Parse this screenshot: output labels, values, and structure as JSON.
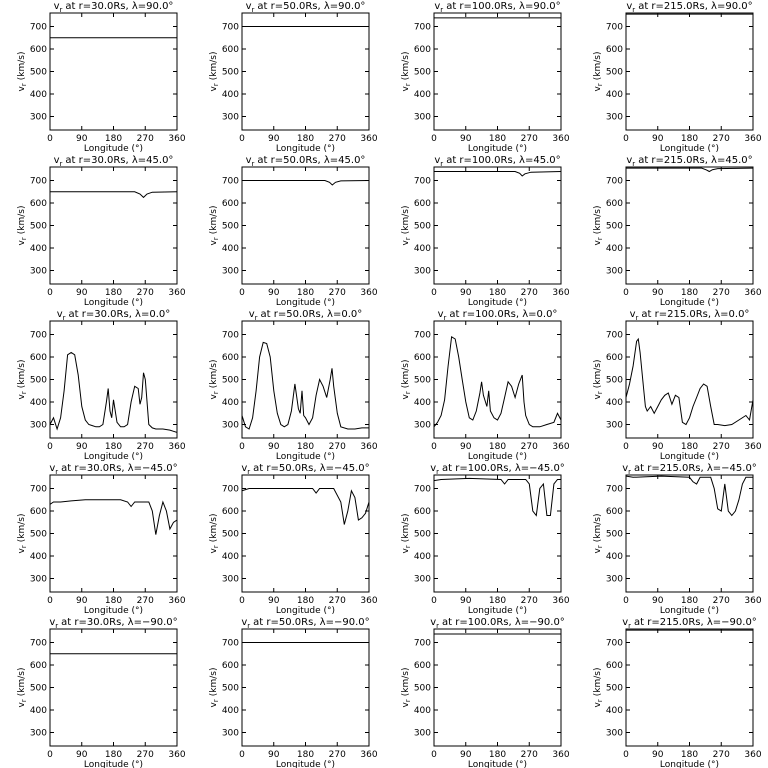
{
  "chart_data": [
    {
      "type": "line",
      "title_symbol": "v",
      "title_subscript": "r",
      "title": "at r=30.0Rs, λ=90.0°",
      "y_label_symbol": "v",
      "y_label_subscript": "r",
      "y_label": "(km/s)",
      "x_label": "Longitude (°)",
      "color": "#000000",
      "xlim": [
        0,
        360
      ],
      "ylim": [
        240,
        760
      ],
      "xticks": [
        0,
        90,
        180,
        270,
        360
      ],
      "yticks": [
        300,
        400,
        500,
        600,
        700
      ],
      "x": [
        0,
        360
      ],
      "values": [
        650,
        650
      ]
    },
    {
      "type": "line",
      "title_symbol": "v",
      "title_subscript": "r",
      "title": "at r=50.0Rs, λ=90.0°",
      "y_label_symbol": "v",
      "y_label_subscript": "r",
      "y_label": "(km/s)",
      "x_label": "Longitude (°)",
      "color": "#000000",
      "xlim": [
        0,
        360
      ],
      "ylim": [
        240,
        760
      ],
      "xticks": [
        0,
        90,
        180,
        270,
        360
      ],
      "yticks": [
        300,
        400,
        500,
        600,
        700
      ],
      "x": [
        0,
        360
      ],
      "values": [
        700,
        700
      ]
    },
    {
      "type": "line",
      "title_symbol": "v",
      "title_subscript": "r",
      "title": "at r=100.0Rs, λ=90.0°",
      "y_label_symbol": "v",
      "y_label_subscript": "r",
      "y_label": "(km/s)",
      "x_label": "Longitude (°)",
      "color": "#000000",
      "xlim": [
        0,
        360
      ],
      "ylim": [
        240,
        760
      ],
      "xticks": [
        0,
        90,
        180,
        270,
        360
      ],
      "yticks": [
        300,
        400,
        500,
        600,
        700
      ],
      "x": [
        0,
        360
      ],
      "values": [
        738,
        738
      ]
    },
    {
      "type": "line",
      "title_symbol": "v",
      "title_subscript": "r",
      "title": "at r=215.0Rs, λ=90.0°",
      "y_label_symbol": "v",
      "y_label_subscript": "r",
      "y_label": "(km/s)",
      "x_label": "Longitude (°)",
      "color": "#000000",
      "xlim": [
        0,
        360
      ],
      "ylim": [
        240,
        760
      ],
      "xticks": [
        0,
        90,
        180,
        270,
        360
      ],
      "yticks": [
        300,
        400,
        500,
        600,
        700
      ],
      "x": [
        0,
        360
      ],
      "values": [
        755,
        755
      ]
    },
    {
      "type": "line",
      "title_symbol": "v",
      "title_subscript": "r",
      "title": "at r=30.0Rs, λ=45.0°",
      "y_label_symbol": "v",
      "y_label_subscript": "r",
      "y_label": "(km/s)",
      "x_label": "Longitude (°)",
      "color": "#000000",
      "xlim": [
        0,
        360
      ],
      "ylim": [
        240,
        760
      ],
      "xticks": [
        0,
        90,
        180,
        270,
        360
      ],
      "yticks": [
        300,
        400,
        500,
        600,
        700
      ],
      "x": [
        0,
        240,
        255,
        265,
        275,
        290,
        360
      ],
      "values": [
        650,
        650,
        640,
        625,
        640,
        648,
        650
      ]
    },
    {
      "type": "line",
      "title_symbol": "v",
      "title_subscript": "r",
      "title": "at r=50.0Rs, λ=45.0°",
      "y_label_symbol": "v",
      "y_label_subscript": "r",
      "y_label": "(km/s)",
      "x_label": "Longitude (°)",
      "color": "#000000",
      "xlim": [
        0,
        360
      ],
      "ylim": [
        240,
        760
      ],
      "xticks": [
        0,
        90,
        180,
        270,
        360
      ],
      "yticks": [
        300,
        400,
        500,
        600,
        700
      ],
      "x": [
        0,
        235,
        248,
        256,
        265,
        280,
        360
      ],
      "values": [
        700,
        700,
        692,
        680,
        692,
        698,
        700
      ]
    },
    {
      "type": "line",
      "title_symbol": "v",
      "title_subscript": "r",
      "title": "at r=100.0Rs, λ=45.0°",
      "y_label_symbol": "v",
      "y_label_subscript": "r",
      "y_label": "(km/s)",
      "x_label": "Longitude (°)",
      "color": "#000000",
      "xlim": [
        0,
        360
      ],
      "ylim": [
        240,
        760
      ],
      "xticks": [
        0,
        90,
        180,
        270,
        360
      ],
      "yticks": [
        300,
        400,
        500,
        600,
        700
      ],
      "x": [
        0,
        230,
        243,
        250,
        258,
        275,
        360
      ],
      "values": [
        740,
        740,
        732,
        720,
        730,
        737,
        740
      ]
    },
    {
      "type": "line",
      "title_symbol": "v",
      "title_subscript": "r",
      "title": "at r=215.0Rs, λ=45.0°",
      "y_label_symbol": "v",
      "y_label_subscript": "r",
      "y_label": "(km/s)",
      "x_label": "Longitude (°)",
      "color": "#000000",
      "xlim": [
        0,
        360
      ],
      "ylim": [
        240,
        760
      ],
      "xticks": [
        0,
        90,
        180,
        270,
        360
      ],
      "yticks": [
        300,
        400,
        500,
        600,
        700
      ],
      "x": [
        0,
        215,
        228,
        236,
        245,
        260,
        360
      ],
      "values": [
        755,
        755,
        747,
        740,
        748,
        753,
        755
      ]
    },
    {
      "type": "line",
      "title_symbol": "v",
      "title_subscript": "r",
      "title": "at r=30.0Rs, λ=0.0°",
      "y_label_symbol": "v",
      "y_label_subscript": "r",
      "y_label": "(km/s)",
      "x_label": "Longitude (°)",
      "color": "#000000",
      "xlim": [
        0,
        360
      ],
      "ylim": [
        240,
        760
      ],
      "xticks": [
        0,
        90,
        180,
        270,
        360
      ],
      "yticks": [
        300,
        400,
        500,
        600,
        700
      ],
      "x": [
        0,
        10,
        20,
        30,
        40,
        50,
        60,
        70,
        80,
        90,
        100,
        110,
        120,
        130,
        140,
        150,
        160,
        165,
        170,
        175,
        180,
        190,
        200,
        210,
        220,
        230,
        240,
        250,
        255,
        260,
        265,
        270,
        280,
        290,
        300,
        320,
        340,
        350,
        360
      ],
      "values": [
        300,
        330,
        280,
        330,
        450,
        610,
        620,
        610,
        520,
        380,
        320,
        300,
        295,
        290,
        290,
        300,
        400,
        460,
        360,
        330,
        410,
        310,
        290,
        290,
        300,
        400,
        470,
        460,
        390,
        420,
        530,
        500,
        300,
        285,
        280,
        280,
        275,
        270,
        265
      ]
    },
    {
      "type": "line",
      "title_symbol": "v",
      "title_subscript": "r",
      "title": "at r=50.0Rs, λ=0.0°",
      "y_label_symbol": "v",
      "y_label_subscript": "r",
      "y_label": "(km/s)",
      "x_label": "Longitude (°)",
      "color": "#000000",
      "xlim": [
        0,
        360
      ],
      "ylim": [
        240,
        760
      ],
      "xticks": [
        0,
        90,
        180,
        270,
        360
      ],
      "yticks": [
        300,
        400,
        500,
        600,
        700
      ],
      "x": [
        0,
        10,
        20,
        30,
        40,
        50,
        60,
        70,
        80,
        90,
        100,
        110,
        120,
        130,
        140,
        150,
        160,
        165,
        170,
        175,
        180,
        190,
        200,
        210,
        220,
        230,
        240,
        250,
        255,
        260,
        270,
        280,
        300,
        320,
        340,
        360
      ],
      "values": [
        340,
        290,
        280,
        330,
        450,
        600,
        665,
        660,
        600,
        450,
        350,
        300,
        290,
        300,
        360,
        480,
        370,
        350,
        450,
        340,
        330,
        300,
        330,
        430,
        500,
        470,
        420,
        500,
        550,
        470,
        350,
        290,
        280,
        280,
        285,
        285
      ]
    },
    {
      "type": "line",
      "title_symbol": "v",
      "title_subscript": "r",
      "title": "at r=100.0Rs, λ=0.0°",
      "y_label_symbol": "v",
      "y_label_subscript": "r",
      "y_label": "(km/s)",
      "x_label": "Longitude (°)",
      "color": "#000000",
      "xlim": [
        0,
        360
      ],
      "ylim": [
        240,
        760
      ],
      "xticks": [
        0,
        90,
        180,
        270,
        360
      ],
      "yticks": [
        300,
        400,
        500,
        600,
        700
      ],
      "x": [
        0,
        10,
        20,
        30,
        40,
        50,
        60,
        70,
        80,
        90,
        100,
        110,
        120,
        130,
        135,
        140,
        150,
        155,
        160,
        170,
        180,
        190,
        200,
        210,
        220,
        230,
        240,
        250,
        255,
        260,
        270,
        280,
        300,
        320,
        340,
        350,
        360
      ],
      "values": [
        290,
        310,
        340,
        410,
        560,
        690,
        680,
        600,
        500,
        400,
        330,
        320,
        360,
        440,
        490,
        430,
        380,
        450,
        360,
        330,
        320,
        350,
        420,
        490,
        470,
        420,
        480,
        520,
        400,
        340,
        300,
        290,
        290,
        300,
        310,
        350,
        320
      ]
    },
    {
      "type": "line",
      "title_symbol": "v",
      "title_subscript": "r",
      "title": "at r=215.0Rs, λ=0.0°",
      "y_label_symbol": "v",
      "y_label_subscript": "r",
      "y_label": "(km/s)",
      "x_label": "Longitude (°)",
      "color": "#000000",
      "xlim": [
        0,
        360
      ],
      "ylim": [
        240,
        760
      ],
      "xticks": [
        0,
        90,
        180,
        270,
        360
      ],
      "yticks": [
        300,
        400,
        500,
        600,
        700
      ],
      "x": [
        0,
        10,
        20,
        30,
        35,
        40,
        50,
        55,
        60,
        70,
        80,
        90,
        100,
        110,
        120,
        130,
        140,
        150,
        160,
        170,
        180,
        190,
        200,
        210,
        220,
        230,
        240,
        250,
        260,
        280,
        300,
        320,
        340,
        350,
        360
      ],
      "values": [
        420,
        480,
        560,
        670,
        680,
        620,
        460,
        380,
        360,
        380,
        350,
        380,
        410,
        430,
        440,
        390,
        430,
        420,
        310,
        300,
        330,
        380,
        420,
        460,
        480,
        470,
        380,
        300,
        300,
        295,
        300,
        320,
        340,
        320,
        410
      ]
    },
    {
      "type": "line",
      "title_symbol": "v",
      "title_subscript": "r",
      "title": "at r=30.0Rs, λ=−45.0°",
      "y_label_symbol": "v",
      "y_label_subscript": "r",
      "y_label": "(km/s)",
      "x_label": "Longitude (°)",
      "color": "#000000",
      "xlim": [
        0,
        360
      ],
      "ylim": [
        240,
        760
      ],
      "xticks": [
        0,
        90,
        180,
        270,
        360
      ],
      "yticks": [
        300,
        400,
        500,
        600,
        700
      ],
      "x": [
        0,
        10,
        30,
        60,
        100,
        200,
        220,
        230,
        240,
        280,
        290,
        300,
        310,
        320,
        330,
        340,
        350,
        360
      ],
      "values": [
        630,
        640,
        640,
        645,
        650,
        650,
        640,
        620,
        640,
        640,
        600,
        495,
        580,
        640,
        600,
        520,
        550,
        560
      ]
    },
    {
      "type": "line",
      "title_symbol": "v",
      "title_subscript": "r",
      "title": "at r=50.0Rs, λ=−45.0°",
      "y_label_symbol": "v",
      "y_label_subscript": "r",
      "y_label": "(km/s)",
      "x_label": "Longitude (°)",
      "color": "#000000",
      "xlim": [
        0,
        360
      ],
      "ylim": [
        240,
        760
      ],
      "xticks": [
        0,
        90,
        180,
        270,
        360
      ],
      "yticks": [
        300,
        400,
        500,
        600,
        700
      ],
      "x": [
        0,
        10,
        20,
        40,
        100,
        180,
        200,
        210,
        220,
        260,
        280,
        290,
        300,
        310,
        320,
        330,
        340,
        350,
        360
      ],
      "values": [
        690,
        695,
        700,
        700,
        700,
        700,
        700,
        680,
        700,
        700,
        640,
        540,
        600,
        690,
        660,
        560,
        570,
        590,
        640
      ]
    },
    {
      "type": "line",
      "title_symbol": "v",
      "title_subscript": "r",
      "title": "at r=100.0Rs, λ=−45.0°",
      "y_label_symbol": "v",
      "y_label_subscript": "r",
      "y_label": "(km/s)",
      "x_label": "Longitude (°)",
      "color": "#000000",
      "xlim": [
        0,
        360
      ],
      "ylim": [
        240,
        760
      ],
      "xticks": [
        0,
        90,
        180,
        270,
        360
      ],
      "yticks": [
        300,
        400,
        500,
        600,
        700
      ],
      "x": [
        0,
        20,
        100,
        190,
        200,
        210,
        260,
        270,
        280,
        290,
        300,
        310,
        320,
        330,
        340,
        350,
        360
      ],
      "values": [
        735,
        740,
        745,
        740,
        720,
        740,
        740,
        720,
        600,
        580,
        700,
        720,
        580,
        580,
        720,
        740,
        740
      ]
    },
    {
      "type": "line",
      "title_symbol": "v",
      "title_subscript": "r",
      "title": "at r=215.0Rs, λ=−45.0°",
      "y_label_symbol": "v",
      "y_label_subscript": "r",
      "y_label": "(km/s)",
      "x_label": "Longitude (°)",
      "color": "#000000",
      "xlim": [
        0,
        360
      ],
      "ylim": [
        240,
        760
      ],
      "xticks": [
        0,
        90,
        180,
        270,
        360
      ],
      "yticks": [
        300,
        400,
        500,
        600,
        700
      ],
      "x": [
        0,
        20,
        100,
        180,
        190,
        200,
        210,
        240,
        250,
        260,
        270,
        280,
        290,
        300,
        310,
        320,
        330,
        340,
        360
      ],
      "values": [
        755,
        750,
        755,
        750,
        730,
        720,
        750,
        750,
        700,
        610,
        600,
        720,
        600,
        580,
        600,
        650,
        720,
        750,
        750
      ]
    },
    {
      "type": "line",
      "title_symbol": "v",
      "title_subscript": "r",
      "title": "at r=30.0Rs, λ=−90.0°",
      "y_label_symbol": "v",
      "y_label_subscript": "r",
      "y_label": "(km/s)",
      "x_label": "Longitude (°)",
      "color": "#000000",
      "xlim": [
        0,
        360
      ],
      "ylim": [
        240,
        760
      ],
      "xticks": [
        0,
        90,
        180,
        270,
        360
      ],
      "yticks": [
        300,
        400,
        500,
        600,
        700
      ],
      "x": [
        0,
        360
      ],
      "values": [
        650,
        650
      ]
    },
    {
      "type": "line",
      "title_symbol": "v",
      "title_subscript": "r",
      "title": "at r=50.0Rs, λ=−90.0°",
      "y_label_symbol": "v",
      "y_label_subscript": "r",
      "y_label": "(km/s)",
      "x_label": "Longitude (°)",
      "color": "#000000",
      "xlim": [
        0,
        360
      ],
      "ylim": [
        240,
        760
      ],
      "xticks": [
        0,
        90,
        180,
        270,
        360
      ],
      "yticks": [
        300,
        400,
        500,
        600,
        700
      ],
      "x": [
        0,
        360
      ],
      "values": [
        700,
        700
      ]
    },
    {
      "type": "line",
      "title_symbol": "v",
      "title_subscript": "r",
      "title": "at r=100.0Rs, λ=−90.0°",
      "y_label_symbol": "v",
      "y_label_subscript": "r",
      "y_label": "(km/s)",
      "x_label": "Longitude (°)",
      "color": "#000000",
      "xlim": [
        0,
        360
      ],
      "ylim": [
        240,
        760
      ],
      "xticks": [
        0,
        90,
        180,
        270,
        360
      ],
      "yticks": [
        300,
        400,
        500,
        600,
        700
      ],
      "x": [
        0,
        360
      ],
      "values": [
        738,
        738
      ]
    },
    {
      "type": "line",
      "title_symbol": "v",
      "title_subscript": "r",
      "title": "at r=215.0Rs, λ=−90.0°",
      "y_label_symbol": "v",
      "y_label_subscript": "r",
      "y_label": "(km/s)",
      "x_label": "Longitude (°)",
      "color": "#000000",
      "xlim": [
        0,
        360
      ],
      "ylim": [
        240,
        760
      ],
      "xticks": [
        0,
        90,
        180,
        270,
        360
      ],
      "yticks": [
        300,
        400,
        500,
        600,
        700
      ],
      "x": [
        0,
        360
      ],
      "values": [
        755,
        755
      ]
    }
  ]
}
